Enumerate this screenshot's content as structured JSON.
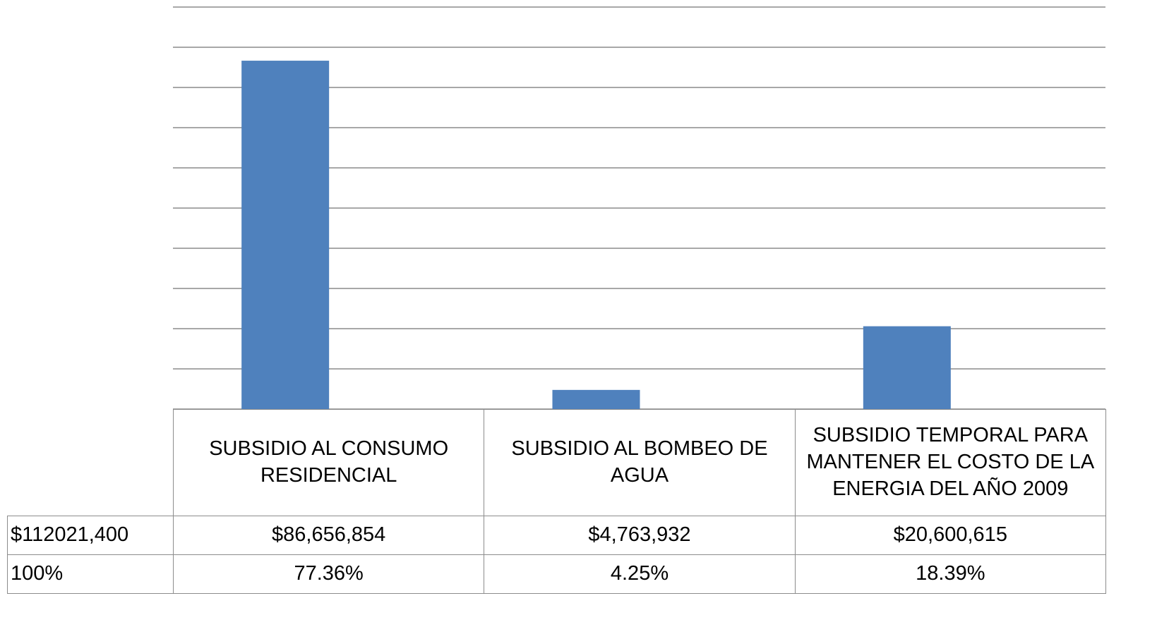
{
  "chart_data": {
    "type": "bar",
    "categories": [
      "SUBSIDIO AL CONSUMO RESIDENCIAL",
      "SUBSIDIO AL BOMBEO DE AGUA",
      "SUBSIDIO TEMPORAL PARA MANTENER EL COSTO DE LA ENERGIA DEL AÑO 2009"
    ],
    "values": [
      86656854,
      4763932,
      20600615
    ],
    "value_labels": [
      "$86,656,854",
      "$4,763,932",
      "$20,600,615"
    ],
    "percents": [
      77.36,
      4.25,
      18.39
    ],
    "percent_labels": [
      "77.36%",
      "4.25%",
      "18.39%"
    ],
    "total": 112021400,
    "total_label": "$112021,400",
    "percent_total": 100,
    "percent_total_label": "100%",
    "color": "#4f81bd",
    "ylim": [
      0,
      100000000
    ],
    "yticks": [
      0,
      10000000,
      20000000,
      30000000,
      40000000,
      50000000,
      60000000,
      70000000,
      80000000,
      90000000,
      100000000
    ],
    "grid": true
  }
}
